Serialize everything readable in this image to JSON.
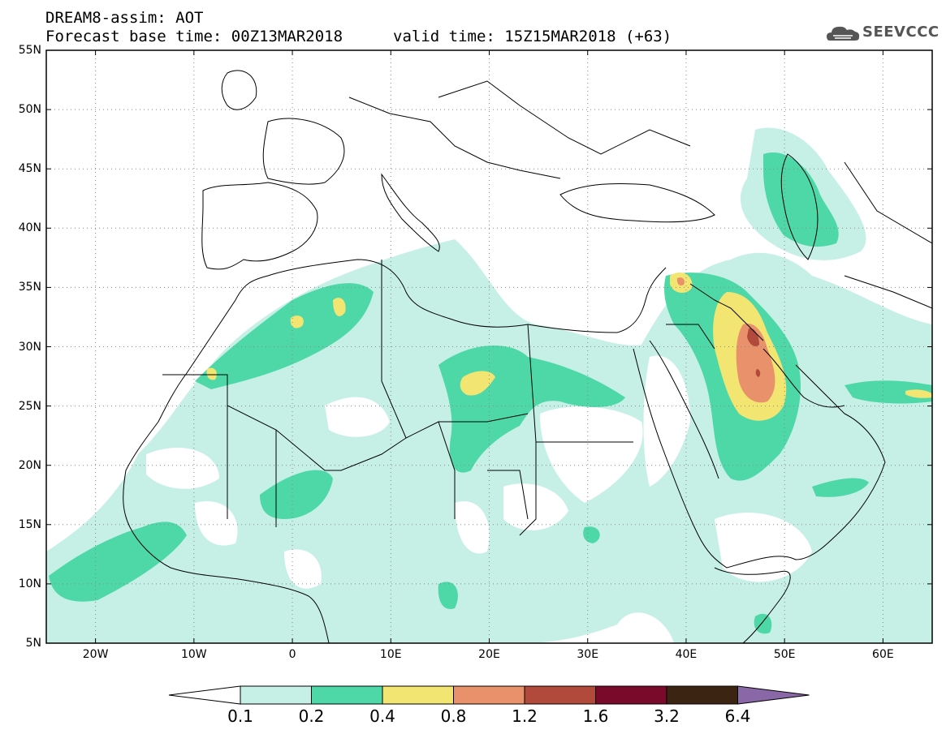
{
  "title": {
    "line1": "DREAM8-assim: AOT",
    "line2": "Forecast base time: 00Z13MAR2018",
    "valid": "valid time: 15Z15MAR2018 (+63)"
  },
  "logo": {
    "text": "SEEVCCC",
    "icon": "cloud-icon"
  },
  "map": {
    "lon_range": [
      -25,
      65
    ],
    "lat_range": [
      5,
      55
    ],
    "lat_labels": [
      "55N",
      "50N",
      "45N",
      "40N",
      "35N",
      "30N",
      "25N",
      "20N",
      "15N",
      "10N",
      "5N"
    ],
    "lat_values": [
      55,
      50,
      45,
      40,
      35,
      30,
      25,
      20,
      15,
      10,
      5
    ],
    "lon_labels": [
      "20W",
      "10W",
      "0",
      "10E",
      "20E",
      "30E",
      "40E",
      "50E",
      "60E"
    ],
    "lon_values": [
      -20,
      -10,
      0,
      10,
      20,
      30,
      40,
      50,
      60
    ],
    "grid": "dotted"
  },
  "colorbar": {
    "labels": [
      "0.1",
      "0.2",
      "0.4",
      "0.8",
      "1.2",
      "1.6",
      "3.2",
      "6.4"
    ],
    "colors": [
      "#c6f0e6",
      "#4ed8a8",
      "#f2e572",
      "#e8916a",
      "#b14a3a",
      "#7a0a2a",
      "#3b2412",
      "#8a68a8"
    ],
    "below_color": "#ffffff"
  },
  "dust_classes": {
    "c1": "#c6f0e6",
    "c2": "#4ed8a8",
    "c3": "#f2e572",
    "c4": "#e8916a",
    "c5": "#b14a3a"
  }
}
